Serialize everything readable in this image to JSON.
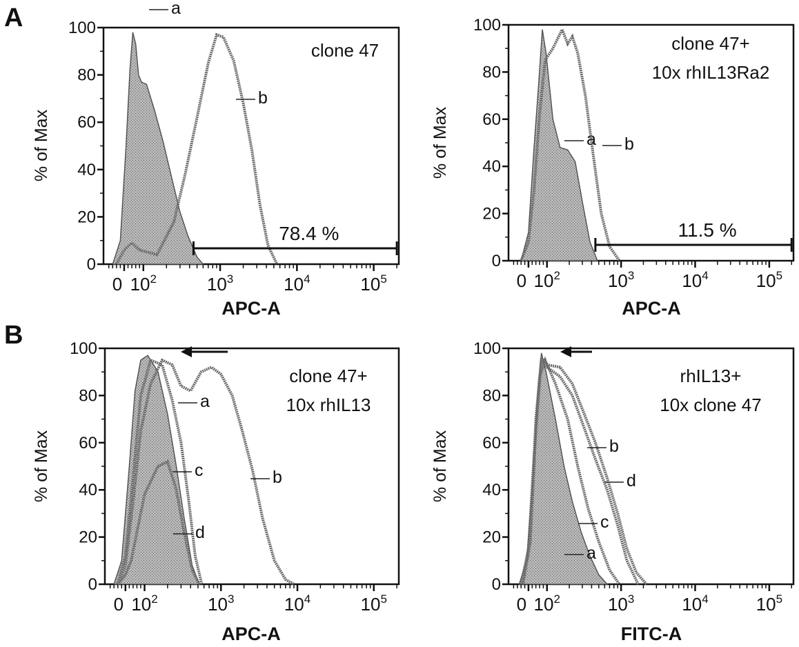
{
  "panel_letters": [
    "A",
    "B"
  ],
  "chart_data": [
    {
      "type": "area",
      "panel": "A",
      "annotation": [
        "clone 47"
      ],
      "xlabel": "APC-A",
      "ylabel": "% of Max",
      "ylim": [
        0,
        100
      ],
      "yticks": [
        "0",
        "20",
        "40",
        "60",
        "80",
        "100"
      ],
      "xticks": [
        {
          "base": "0",
          "sup": ""
        },
        {
          "base": "10",
          "sup": "2"
        },
        {
          "base": "10",
          "sup": "3"
        },
        {
          "base": "10",
          "sup": "4"
        },
        {
          "base": "10",
          "sup": "5"
        }
      ],
      "xscale": "biexponential",
      "gate": {
        "label": "78.4 %",
        "from": 450,
        "to": 200000
      },
      "series": [
        {
          "name": "a",
          "filled": true,
          "x": [
            -60,
            -20,
            10,
            30,
            45,
            60,
            75,
            90,
            110,
            140,
            180,
            240,
            300,
            380,
            500,
            600
          ],
          "values": [
            0,
            10,
            50,
            82,
            98,
            93,
            80,
            77,
            76,
            65,
            52,
            35,
            22,
            12,
            3,
            0
          ]
        },
        {
          "name": "b",
          "filled": false,
          "x": [
            -40,
            0,
            40,
            80,
            150,
            250,
            350,
            500,
            700,
            900,
            1100,
            1500,
            2000,
            2600,
            3300,
            4200,
            5500
          ],
          "values": [
            0,
            6,
            9,
            6,
            4,
            18,
            38,
            62,
            85,
            97,
            96,
            86,
            68,
            48,
            25,
            8,
            0
          ]
        }
      ]
    },
    {
      "type": "area",
      "panel": "A",
      "annotation": [
        "clone 47+",
        "10x rhIL13Ra2"
      ],
      "xlabel": "APC-A",
      "ylabel": "% of Max",
      "ylim": [
        0,
        100
      ],
      "yticks": [
        "0",
        "20",
        "40",
        "60",
        "80",
        "100"
      ],
      "xticks": [
        {
          "base": "0",
          "sup": ""
        },
        {
          "base": "10",
          "sup": "2"
        },
        {
          "base": "10",
          "sup": "3"
        },
        {
          "base": "10",
          "sup": "4"
        },
        {
          "base": "10",
          "sup": "5"
        }
      ],
      "xscale": "biexponential",
      "gate": {
        "label": "11.5 %",
        "from": 450,
        "to": 200000
      },
      "series": [
        {
          "name": "a",
          "filled": true,
          "x": [
            -40,
            0,
            30,
            55,
            75,
            95,
            120,
            150,
            190,
            240,
            300,
            380,
            480
          ],
          "values": [
            0,
            12,
            48,
            75,
            98,
            88,
            60,
            48,
            47,
            42,
            25,
            8,
            0
          ]
        },
        {
          "name": "b",
          "filled": false,
          "x": [
            -40,
            0,
            30,
            60,
            90,
            120,
            160,
            190,
            220,
            260,
            330,
            420,
            540,
            700,
            950
          ],
          "values": [
            0,
            8,
            30,
            62,
            85,
            90,
            98,
            92,
            95,
            88,
            70,
            45,
            20,
            6,
            0
          ]
        }
      ]
    },
    {
      "type": "area",
      "panel": "B",
      "annotation": [
        "clone 47+",
        "10x rhIL13"
      ],
      "xlabel": "APC-A",
      "ylabel": "% of Max",
      "ylim": [
        0,
        100
      ],
      "yticks": [
        "0",
        "20",
        "40",
        "60",
        "80",
        "100"
      ],
      "xticks": [
        {
          "base": "0",
          "sup": ""
        },
        {
          "base": "10",
          "sup": "2"
        },
        {
          "base": "10",
          "sup": "3"
        },
        {
          "base": "10",
          "sup": "4"
        },
        {
          "base": "10",
          "sup": "5"
        }
      ],
      "xscale": "biexponential",
      "series": [
        {
          "name": "a",
          "filled": true,
          "x": [
            -60,
            -20,
            20,
            50,
            80,
            110,
            150,
            200,
            260,
            330,
            420,
            520
          ],
          "values": [
            0,
            10,
            50,
            82,
            95,
            97,
            90,
            72,
            50,
            28,
            8,
            0
          ]
        },
        {
          "name": "b",
          "filled": false,
          "x": [
            -40,
            0,
            40,
            80,
            120,
            170,
            230,
            300,
            400,
            550,
            750,
            1000,
            1400,
            1900,
            2600,
            3500,
            5000,
            7000,
            9000
          ],
          "values": [
            0,
            8,
            35,
            65,
            85,
            95,
            93,
            84,
            82,
            90,
            92,
            89,
            80,
            65,
            48,
            28,
            10,
            2,
            0
          ]
        },
        {
          "name": "c",
          "filled": false,
          "x": [
            -40,
            0,
            40,
            80,
            120,
            170,
            230,
            300,
            380,
            460,
            560
          ],
          "values": [
            0,
            12,
            45,
            80,
            95,
            93,
            78,
            60,
            35,
            12,
            0
          ]
        },
        {
          "name": "d",
          "filled": false,
          "x": [
            -40,
            0,
            30,
            60,
            100,
            150,
            200,
            260,
            330,
            420,
            520
          ],
          "values": [
            0,
            4,
            10,
            22,
            38,
            50,
            52,
            40,
            22,
            6,
            0
          ]
        }
      ]
    },
    {
      "type": "area",
      "panel": "B",
      "annotation": [
        "rhIL13+",
        "10x clone 47"
      ],
      "xlabel": "FITC-A",
      "ylabel": "% of Max",
      "ylim": [
        0,
        100
      ],
      "yticks": [
        "0",
        "20",
        "40",
        "60",
        "80",
        "100"
      ],
      "xticks": [
        {
          "base": "0",
          "sup": ""
        },
        {
          "base": "10",
          "sup": "2"
        },
        {
          "base": "10",
          "sup": "3"
        },
        {
          "base": "10",
          "sup": "4"
        },
        {
          "base": "10",
          "sup": "5"
        }
      ],
      "xscale": "biexponential",
      "series": [
        {
          "name": "a",
          "filled": true,
          "x": [
            -50,
            -10,
            20,
            45,
            70,
            95,
            130,
            170,
            220,
            290,
            380,
            500,
            650
          ],
          "values": [
            0,
            10,
            40,
            75,
            98,
            90,
            70,
            50,
            35,
            22,
            12,
            4,
            0
          ]
        },
        {
          "name": "b",
          "filled": false,
          "x": [
            -30,
            10,
            40,
            70,
            100,
            150,
            220,
            320,
            450,
            650,
            900,
            1200,
            1600,
            2200
          ],
          "values": [
            0,
            20,
            70,
            96,
            93,
            92,
            85,
            72,
            60,
            45,
            30,
            15,
            5,
            0
          ]
        },
        {
          "name": "c",
          "filled": false,
          "x": [
            -40,
            0,
            30,
            60,
            90,
            130,
            190,
            260,
            360,
            500,
            700,
            950
          ],
          "values": [
            0,
            15,
            55,
            88,
            95,
            85,
            70,
            50,
            32,
            18,
            6,
            0
          ]
        },
        {
          "name": "d",
          "filled": false,
          "x": [
            -30,
            10,
            40,
            70,
            100,
            150,
            220,
            320,
            450,
            650,
            900,
            1200,
            1700
          ],
          "values": [
            0,
            18,
            65,
            95,
            92,
            88,
            80,
            66,
            53,
            40,
            25,
            10,
            0
          ]
        }
      ]
    }
  ]
}
